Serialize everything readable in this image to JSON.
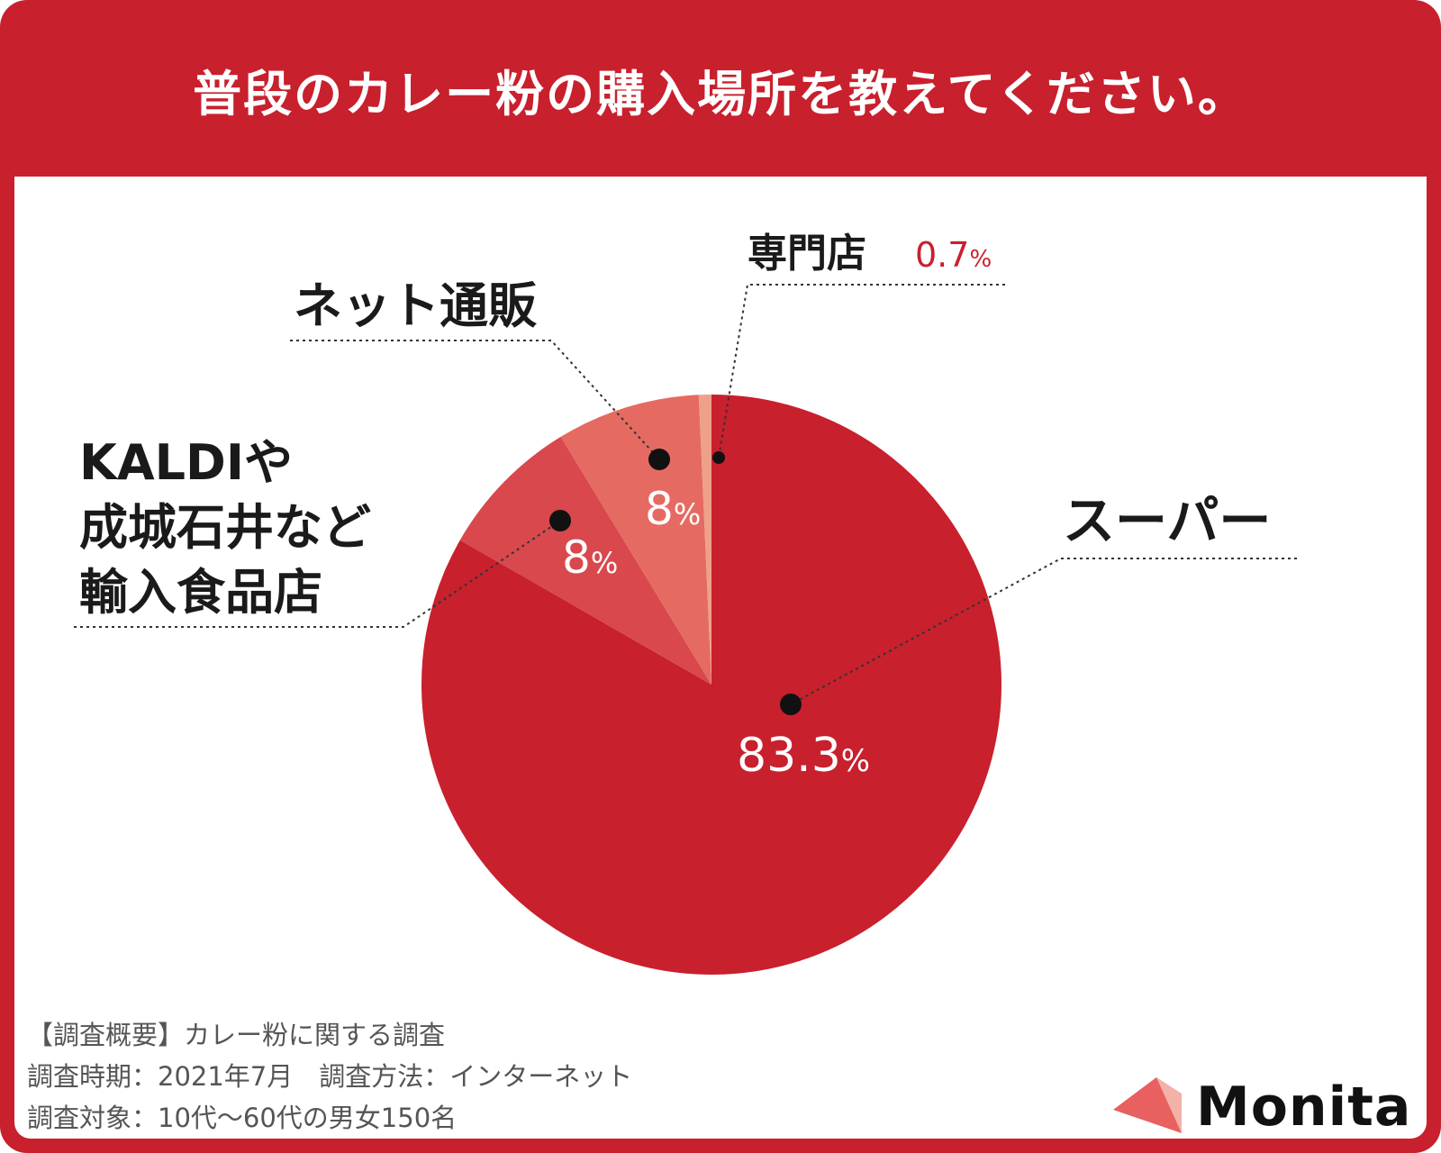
{
  "header": {
    "title": "普段のカレー粉の購入場所を教えてください。"
  },
  "chart_data": {
    "type": "pie",
    "title": "普段のカレー粉の購入場所を教えてください。",
    "slices": [
      {
        "label": "スーパー",
        "value": 83.3,
        "value_label": "83.3",
        "color": "#c8202d"
      },
      {
        "label_lines": [
          "KALDIや",
          "成城石井など",
          "輸入食品店"
        ],
        "value": 8,
        "value_label": "8",
        "color": "#d8484d"
      },
      {
        "label": "ネット通販",
        "value": 8,
        "value_label": "8",
        "color": "#e56b62"
      },
      {
        "label": "専門店",
        "value": 0.7,
        "value_label": "0.7",
        "color": "#eea08b"
      }
    ],
    "unit": "%"
  },
  "footer": {
    "line1": "【調査概要】カレー粉に関する調査",
    "line2": "調査時期：2021年7月　調査方法：インターネット",
    "line3": "調査対象：10代〜60代の男女150名"
  },
  "brand": {
    "name": "Monita",
    "colors": {
      "main": "#e8605f",
      "light": "#f3b1a8"
    }
  }
}
